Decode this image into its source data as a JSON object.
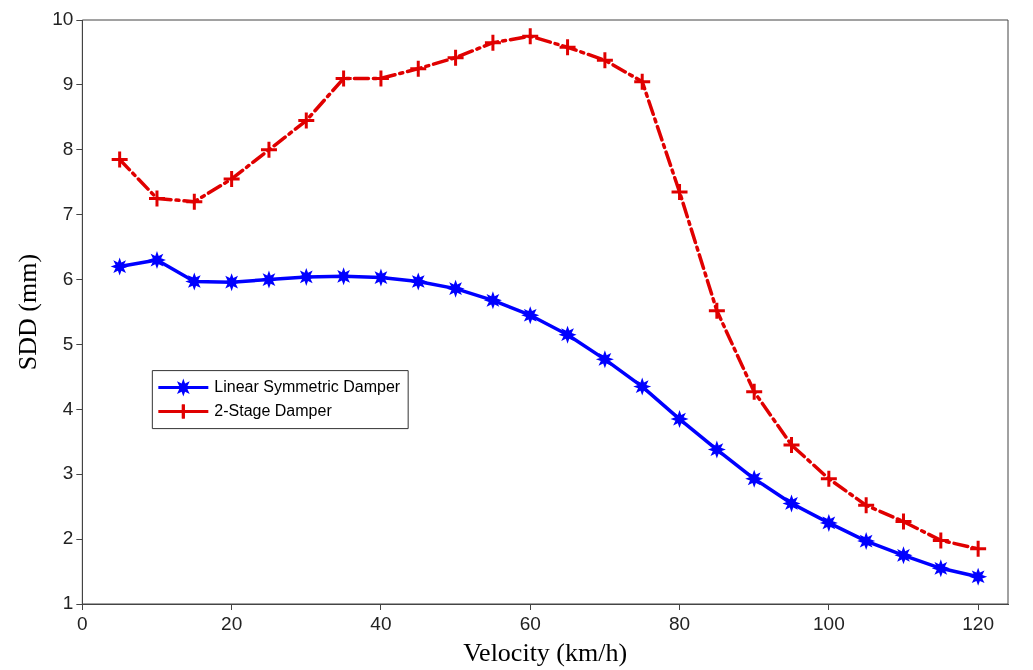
{
  "chart_data": {
    "type": "line",
    "xlabel": "Velocity (km/h)",
    "ylabel": "SDD (mm)",
    "x": [
      5,
      10,
      15,
      20,
      25,
      30,
      35,
      40,
      45,
      50,
      55,
      60,
      65,
      70,
      75,
      80,
      85,
      90,
      95,
      100,
      105,
      110,
      115,
      120
    ],
    "xlim": [
      0,
      124
    ],
    "xticks": [
      0,
      20,
      40,
      60,
      80,
      100,
      120
    ],
    "ylim": [
      1,
      10
    ],
    "yticks": [
      1,
      2,
      3,
      4,
      5,
      6,
      7,
      8,
      9,
      10
    ],
    "grid": false,
    "legend": "left",
    "series": [
      {
        "name": "Linear Symmetric Damper",
        "color": "#0000ff",
        "marker": "star",
        "line_style": "solid",
        "values": [
          6.2,
          6.3,
          5.97,
          5.96,
          6.0,
          6.04,
          6.05,
          6.03,
          5.97,
          5.86,
          5.68,
          5.45,
          5.15,
          4.77,
          4.35,
          3.85,
          3.38,
          2.93,
          2.55,
          2.25,
          1.97,
          1.75,
          1.55,
          1.42
        ]
      },
      {
        "name": "2-Stage Damper",
        "color": "#e00000",
        "marker": "cross",
        "line_style": "dashed",
        "values": [
          7.85,
          7.25,
          7.2,
          7.55,
          8.0,
          8.45,
          9.1,
          9.1,
          9.25,
          9.42,
          9.65,
          9.75,
          9.58,
          9.38,
          9.05,
          7.35,
          5.52,
          4.27,
          3.45,
          2.93,
          2.52,
          2.27,
          1.98,
          1.85
        ]
      }
    ]
  }
}
